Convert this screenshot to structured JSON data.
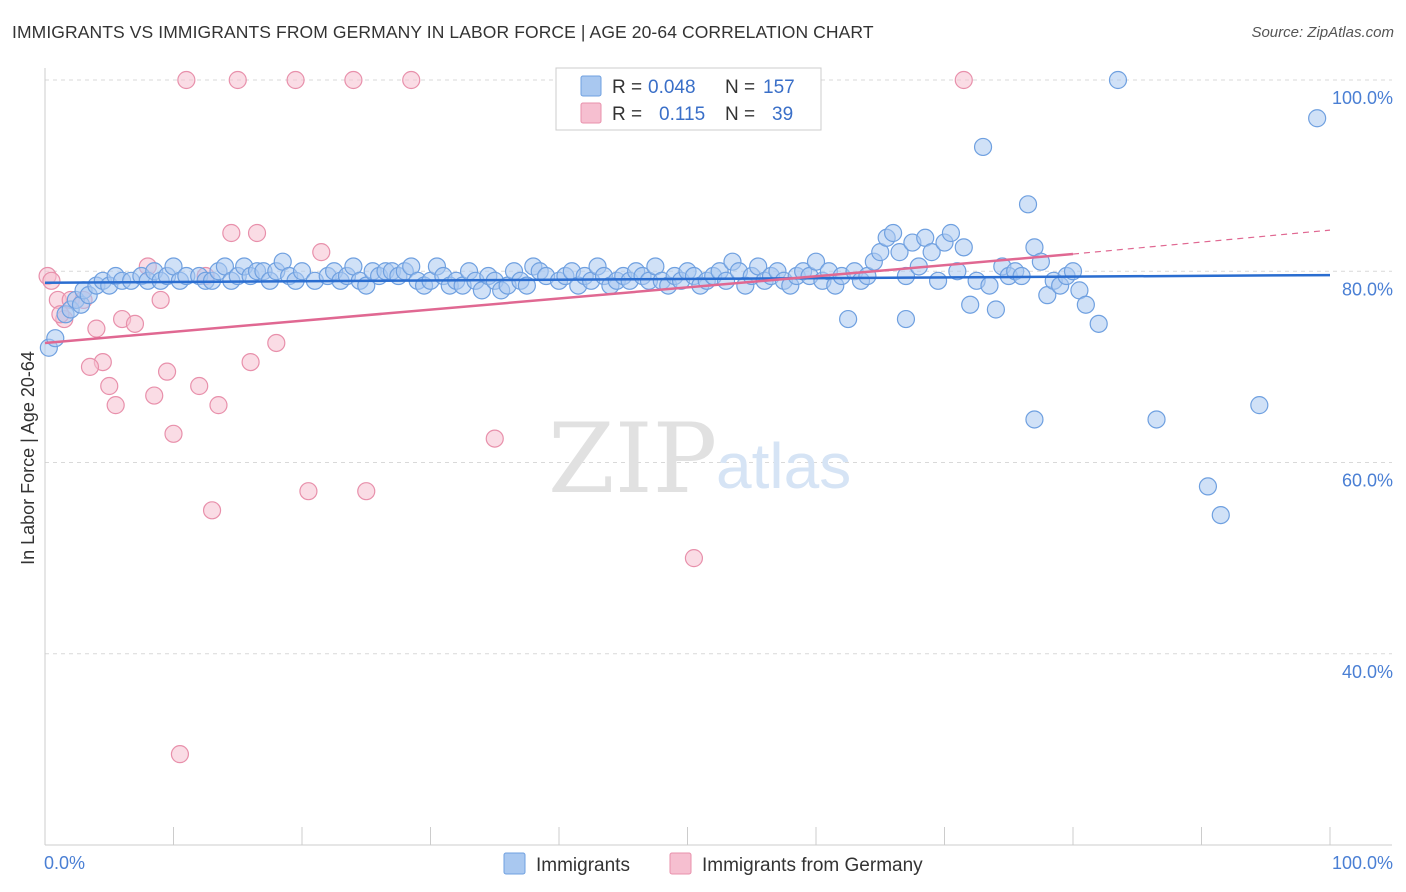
{
  "header": {
    "title": "IMMIGRANTS VS IMMIGRANTS FROM GERMANY IN LABOR FORCE | AGE 20-64 CORRELATION CHART",
    "source": "Source: ZipAtlas.com"
  },
  "watermark": {
    "zip": "ZIP",
    "atlas": "atlas"
  },
  "colors": {
    "blue_fill": "#a9c8f0",
    "blue_stroke": "#6fa0e0",
    "blue_line": "#2a6dd0",
    "pink_fill": "#f6bfd0",
    "pink_stroke": "#e890ab",
    "pink_line": "#e06892",
    "grid": "#d9d9d9",
    "tick_text": "#4a7fd4"
  },
  "legend": {
    "rows": [
      {
        "r_label": "R =",
        "r_value": "0.048",
        "n_label": "N =",
        "n_value": "157",
        "series": "blue"
      },
      {
        "r_label": "R =",
        "r_value": "0.115",
        "n_label": "N =",
        "n_value": "39",
        "series": "pink"
      }
    ]
  },
  "bottom_legend": [
    "Immigrants",
    "Immigrants from Germany"
  ],
  "chart_data": {
    "type": "scatter",
    "xlabel": "",
    "ylabel": "In Labor Force | Age 20-64",
    "xlim": [
      0,
      100
    ],
    "ylim": [
      20,
      100
    ],
    "x_tick_labels": [
      {
        "value": 0,
        "label": "0.0%"
      },
      {
        "value": 100,
        "label": "100.0%"
      }
    ],
    "y_tick_labels": [
      {
        "value": 100,
        "label": "100.0%"
      },
      {
        "value": 80,
        "label": "80.0%"
      },
      {
        "value": 60,
        "label": "60.0%"
      },
      {
        "value": 40,
        "label": "40.0%"
      }
    ],
    "grid": true,
    "series": [
      {
        "name": "Immigrants",
        "color": "blue",
        "points": [
          [
            0.3,
            72.0
          ],
          [
            0.8,
            73.0
          ],
          [
            1.6,
            75.5
          ],
          [
            2.0,
            76.0
          ],
          [
            2.4,
            77.0
          ],
          [
            2.8,
            76.5
          ],
          [
            3.0,
            78.0
          ],
          [
            3.4,
            77.5
          ],
          [
            4.0,
            78.5
          ],
          [
            4.5,
            79.0
          ],
          [
            5.0,
            78.5
          ],
          [
            5.5,
            79.5
          ],
          [
            6.0,
            79.0
          ],
          [
            6.7,
            79.0
          ],
          [
            7.5,
            79.5
          ],
          [
            8.0,
            79.0
          ],
          [
            8.5,
            80.0
          ],
          [
            9.0,
            79.0
          ],
          [
            9.5,
            79.5
          ],
          [
            10.0,
            80.5
          ],
          [
            10.5,
            79.0
          ],
          [
            11.0,
            79.5
          ],
          [
            12.0,
            79.5
          ],
          [
            12.5,
            79.0
          ],
          [
            13.0,
            79.0
          ],
          [
            13.5,
            80.0
          ],
          [
            14.0,
            80.5
          ],
          [
            14.5,
            79.0
          ],
          [
            15.0,
            79.5
          ],
          [
            15.5,
            80.5
          ],
          [
            16.0,
            79.5
          ],
          [
            16.5,
            80.0
          ],
          [
            17.0,
            80.0
          ],
          [
            17.5,
            79.0
          ],
          [
            18.0,
            80.0
          ],
          [
            18.5,
            81.0
          ],
          [
            19.0,
            79.5
          ],
          [
            19.5,
            79.0
          ],
          [
            20.0,
            80.0
          ],
          [
            21.0,
            79.0
          ],
          [
            22.0,
            79.5
          ],
          [
            22.5,
            80.0
          ],
          [
            23.0,
            79.0
          ],
          [
            23.5,
            79.5
          ],
          [
            24.0,
            80.5
          ],
          [
            24.5,
            79.0
          ],
          [
            25.0,
            78.5
          ],
          [
            25.5,
            80.0
          ],
          [
            26.0,
            79.5
          ],
          [
            26.5,
            80.0
          ],
          [
            27.0,
            80.0
          ],
          [
            27.5,
            79.5
          ],
          [
            28.0,
            80.0
          ],
          [
            28.5,
            80.5
          ],
          [
            29.0,
            79.0
          ],
          [
            29.5,
            78.5
          ],
          [
            30.0,
            79.0
          ],
          [
            30.5,
            80.5
          ],
          [
            31.0,
            79.5
          ],
          [
            31.5,
            78.5
          ],
          [
            32.0,
            79.0
          ],
          [
            32.5,
            78.5
          ],
          [
            33.0,
            80.0
          ],
          [
            33.5,
            79.0
          ],
          [
            34.0,
            78.0
          ],
          [
            34.5,
            79.5
          ],
          [
            35.0,
            79.0
          ],
          [
            35.5,
            78.0
          ],
          [
            36.0,
            78.5
          ],
          [
            36.5,
            80.0
          ],
          [
            37.0,
            79.0
          ],
          [
            37.5,
            78.5
          ],
          [
            38.0,
            80.5
          ],
          [
            38.5,
            80.0
          ],
          [
            39.0,
            79.5
          ],
          [
            40.0,
            79.0
          ],
          [
            40.5,
            79.5
          ],
          [
            41.0,
            80.0
          ],
          [
            41.5,
            78.5
          ],
          [
            42.0,
            79.5
          ],
          [
            42.5,
            79.0
          ],
          [
            43.0,
            80.5
          ],
          [
            43.5,
            79.5
          ],
          [
            44.0,
            78.5
          ],
          [
            44.5,
            79.0
          ],
          [
            45.0,
            79.5
          ],
          [
            45.5,
            79.0
          ],
          [
            46.0,
            80.0
          ],
          [
            46.5,
            79.5
          ],
          [
            47.0,
            79.0
          ],
          [
            47.5,
            80.5
          ],
          [
            48.0,
            79.0
          ],
          [
            48.5,
            78.5
          ],
          [
            49.0,
            79.5
          ],
          [
            49.5,
            79.0
          ],
          [
            50.0,
            80.0
          ],
          [
            50.5,
            79.5
          ],
          [
            51.0,
            78.5
          ],
          [
            51.5,
            79.0
          ],
          [
            52.0,
            79.5
          ],
          [
            52.5,
            80.0
          ],
          [
            53.0,
            79.0
          ],
          [
            53.5,
            81.0
          ],
          [
            54.0,
            80.0
          ],
          [
            54.5,
            78.5
          ],
          [
            55.0,
            79.5
          ],
          [
            55.5,
            80.5
          ],
          [
            56.0,
            79.0
          ],
          [
            56.5,
            79.5
          ],
          [
            57.0,
            80.0
          ],
          [
            57.5,
            79.0
          ],
          [
            58.0,
            78.5
          ],
          [
            58.5,
            79.5
          ],
          [
            59.0,
            80.0
          ],
          [
            59.5,
            79.5
          ],
          [
            60.0,
            81.0
          ],
          [
            60.5,
            79.0
          ],
          [
            61.0,
            80.0
          ],
          [
            61.5,
            78.5
          ],
          [
            62.0,
            79.5
          ],
          [
            62.5,
            75.0
          ],
          [
            63.0,
            80.0
          ],
          [
            63.5,
            79.0
          ],
          [
            64.0,
            79.5
          ],
          [
            64.5,
            81.0
          ],
          [
            65.0,
            82.0
          ],
          [
            65.5,
            83.5
          ],
          [
            66.0,
            84.0
          ],
          [
            66.5,
            82.0
          ],
          [
            67.0,
            79.5
          ],
          [
            67.5,
            83.0
          ],
          [
            68.0,
            80.5
          ],
          [
            68.5,
            83.5
          ],
          [
            69.0,
            82.0
          ],
          [
            69.5,
            79.0
          ],
          [
            70.0,
            83.0
          ],
          [
            70.5,
            84.0
          ],
          [
            71.0,
            80.0
          ],
          [
            71.5,
            82.5
          ],
          [
            72.0,
            76.5
          ],
          [
            72.5,
            79.0
          ],
          [
            73.0,
            93.0
          ],
          [
            73.5,
            78.5
          ],
          [
            74.0,
            76.0
          ],
          [
            74.5,
            80.5
          ],
          [
            75.0,
            79.5
          ],
          [
            75.5,
            80.0
          ],
          [
            76.0,
            79.5
          ],
          [
            76.5,
            87.0
          ],
          [
            77.0,
            82.5
          ],
          [
            77.5,
            81.0
          ],
          [
            78.0,
            77.5
          ],
          [
            78.5,
            79.0
          ],
          [
            79.0,
            78.5
          ],
          [
            79.5,
            79.5
          ],
          [
            80.0,
            80.0
          ],
          [
            80.5,
            78.0
          ],
          [
            81.0,
            76.5
          ],
          [
            82.0,
            74.5
          ],
          [
            83.5,
            100.0
          ],
          [
            99.0,
            96.0
          ],
          [
            94.5,
            66.0
          ],
          [
            90.5,
            57.5
          ],
          [
            91.5,
            54.5
          ],
          [
            86.5,
            64.5
          ],
          [
            77.0,
            64.5
          ],
          [
            67.0,
            75.0
          ]
        ]
      },
      {
        "name": "Immigrants from Germany",
        "color": "pink",
        "points": [
          [
            0.2,
            79.5
          ],
          [
            0.5,
            79.0
          ],
          [
            1.0,
            77.0
          ],
          [
            1.5,
            75.0
          ],
          [
            2.0,
            77.0
          ],
          [
            3.0,
            77.0
          ],
          [
            4.0,
            74.0
          ],
          [
            4.5,
            70.5
          ],
          [
            5.0,
            68.0
          ],
          [
            5.5,
            66.0
          ],
          [
            6.0,
            75.0
          ],
          [
            7.0,
            74.5
          ],
          [
            8.0,
            80.5
          ],
          [
            8.5,
            67.0
          ],
          [
            9.0,
            77.0
          ],
          [
            9.5,
            69.5
          ],
          [
            10.0,
            63.0
          ],
          [
            10.5,
            29.5
          ],
          [
            11.0,
            100.0
          ],
          [
            12.0,
            68.0
          ],
          [
            12.5,
            79.5
          ],
          [
            13.0,
            55.0
          ],
          [
            13.5,
            66.0
          ],
          [
            14.5,
            84.0
          ],
          [
            15.0,
            100.0
          ],
          [
            16.0,
            70.5
          ],
          [
            16.5,
            84.0
          ],
          [
            18.0,
            72.5
          ],
          [
            19.5,
            100.0
          ],
          [
            20.5,
            57.0
          ],
          [
            21.5,
            82.0
          ],
          [
            24.0,
            100.0
          ],
          [
            25.0,
            57.0
          ],
          [
            28.5,
            100.0
          ],
          [
            35.0,
            62.5
          ],
          [
            50.5,
            50.0
          ],
          [
            71.5,
            100.0
          ],
          [
            1.2,
            75.5
          ],
          [
            3.5,
            70.0
          ]
        ]
      }
    ],
    "trend_lines": [
      {
        "series": "Immigrants",
        "from": [
          0,
          78.8
        ],
        "to": [
          100,
          79.6
        ]
      },
      {
        "series": "Immigrants from Germany",
        "from": [
          0,
          72.5
        ],
        "to": [
          80,
          81.8
        ],
        "dashed_to": [
          100,
          84.3
        ]
      }
    ]
  }
}
